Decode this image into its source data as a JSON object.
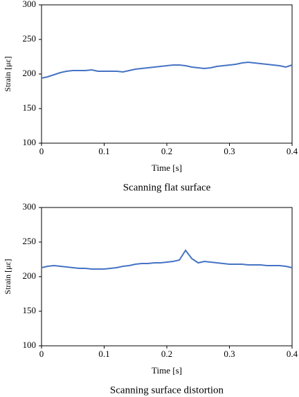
{
  "chart_data": [
    {
      "type": "line",
      "xlabel": "Time [s]",
      "ylabel": "Strain [με]",
      "caption": "Scanning flat surface",
      "color": "#4472c4",
      "x": [
        0,
        0.01,
        0.02,
        0.03,
        0.04,
        0.05,
        0.06,
        0.07,
        0.08,
        0.09,
        0.1,
        0.11,
        0.12,
        0.13,
        0.14,
        0.15,
        0.16,
        0.17,
        0.18,
        0.19,
        0.2,
        0.21,
        0.22,
        0.23,
        0.24,
        0.25,
        0.26,
        0.27,
        0.28,
        0.29,
        0.3,
        0.31,
        0.32,
        0.33,
        0.34,
        0.35,
        0.36,
        0.37,
        0.38,
        0.39,
        0.4
      ],
      "values": [
        194,
        196,
        199,
        202,
        204,
        205,
        205,
        205,
        206,
        204,
        204,
        204,
        204,
        203,
        205,
        207,
        208,
        209,
        210,
        211,
        212,
        213,
        213,
        212,
        210,
        209,
        208,
        209,
        211,
        212,
        213,
        214,
        216,
        217,
        216,
        215,
        214,
        213,
        212,
        210,
        213
      ],
      "xlim": [
        0,
        0.4
      ],
      "xticks": [
        0,
        0.1,
        0.2,
        0.3,
        0.4
      ],
      "ylim": [
        100,
        300
      ],
      "yticks": [
        100,
        150,
        200,
        250,
        300
      ]
    },
    {
      "type": "line",
      "xlabel": "Time [s]",
      "ylabel": "Strain [με]",
      "caption": "Scanning surface distortion",
      "color": "#4472c4",
      "x": [
        0,
        0.01,
        0.02,
        0.03,
        0.04,
        0.05,
        0.06,
        0.07,
        0.08,
        0.09,
        0.1,
        0.11,
        0.12,
        0.13,
        0.14,
        0.15,
        0.16,
        0.17,
        0.18,
        0.19,
        0.2,
        0.21,
        0.22,
        0.23,
        0.24,
        0.25,
        0.26,
        0.27,
        0.28,
        0.29,
        0.3,
        0.31,
        0.32,
        0.33,
        0.34,
        0.35,
        0.36,
        0.37,
        0.38,
        0.39,
        0.4
      ],
      "values": [
        213,
        215,
        216,
        215,
        214,
        213,
        212,
        212,
        211,
        211,
        211,
        212,
        213,
        215,
        216,
        218,
        219,
        219,
        220,
        220,
        221,
        222,
        224,
        238,
        226,
        220,
        222,
        221,
        220,
        219,
        218,
        218,
        218,
        217,
        217,
        217,
        216,
        216,
        216,
        215,
        213
      ],
      "xlim": [
        0,
        0.4
      ],
      "xticks": [
        0,
        0.1,
        0.2,
        0.3,
        0.4
      ],
      "ylim": [
        100,
        300
      ],
      "yticks": [
        100,
        150,
        200,
        250,
        300
      ]
    }
  ]
}
